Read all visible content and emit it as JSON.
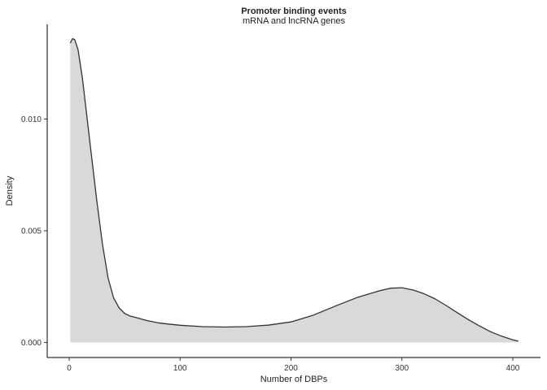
{
  "chart_data": {
    "type": "area",
    "title": "Promoter binding events",
    "subtitle": "mRNA and lncRNA genes",
    "xlabel": "Number of DBPs",
    "ylabel": "Density",
    "xlim": [
      0,
      405
    ],
    "ylim": [
      0,
      0.0136
    ],
    "x_ticks": [
      0,
      100,
      200,
      300,
      400
    ],
    "x_tick_labels": [
      "0",
      "100",
      "200",
      "300",
      "400"
    ],
    "y_ticks": [
      0.0,
      0.005,
      0.01
    ],
    "y_tick_labels": [
      "0.000",
      "0.005",
      "0.010"
    ],
    "grid": false,
    "legend": "none",
    "fill_color": "#d9d9d9",
    "line_color": "#333333",
    "series": [
      {
        "x": [
          1,
          3,
          5,
          8,
          12,
          16,
          20,
          25,
          30,
          35,
          40,
          45,
          50,
          55,
          60,
          70,
          80,
          90,
          100,
          120,
          140,
          160,
          180,
          200,
          220,
          240,
          260,
          280,
          290,
          300,
          310,
          320,
          330,
          340,
          350,
          360,
          370,
          380,
          390,
          400,
          405
        ],
        "values": [
          0.0134,
          0.0136,
          0.01355,
          0.0131,
          0.0118,
          0.0101,
          0.0084,
          0.0063,
          0.0044,
          0.0029,
          0.002,
          0.00155,
          0.0013,
          0.00118,
          0.00112,
          0.00098,
          0.00088,
          0.00082,
          0.00077,
          0.00071,
          0.00069,
          0.00071,
          0.00078,
          0.00092,
          0.00122,
          0.00163,
          0.00202,
          0.00232,
          0.00243,
          0.00245,
          0.00235,
          0.00218,
          0.00195,
          0.00165,
          0.00133,
          0.00102,
          0.00074,
          0.00048,
          0.00028,
          0.00012,
          6e-05
        ]
      }
    ]
  }
}
